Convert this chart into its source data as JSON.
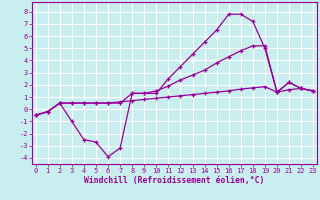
{
  "background_color": "#c8eef0",
  "grid_color": "#ffffff",
  "line_color": "#990099",
  "xlim": [
    -0.3,
    23.3
  ],
  "ylim": [
    -4.5,
    8.8
  ],
  "xlabel": "Windchill (Refroidissement éolien,°C)",
  "xlabel_fontsize": 5.8,
  "ytick_vals": [
    8,
    7,
    6,
    5,
    4,
    3,
    2,
    1,
    0,
    -1,
    -2,
    -3,
    -4
  ],
  "xtick_vals": [
    0,
    1,
    2,
    3,
    4,
    5,
    6,
    7,
    8,
    9,
    10,
    11,
    12,
    13,
    14,
    15,
    16,
    17,
    18,
    19,
    20,
    21,
    22,
    23
  ],
  "series": [
    {
      "x": [
        0,
        1,
        2,
        3,
        4,
        5,
        6,
        7,
        8,
        9,
        10,
        11,
        12,
        13,
        14,
        15,
        16,
        17,
        18,
        19,
        20,
        21,
        22,
        23
      ],
      "y": [
        -0.5,
        -0.2,
        0.5,
        -1.0,
        -2.5,
        -2.7,
        -3.9,
        -3.2,
        1.3,
        1.3,
        1.3,
        2.5,
        3.5,
        4.5,
        5.5,
        6.5,
        7.8,
        7.8,
        7.2,
        5.0,
        1.4,
        2.2,
        1.7,
        1.5
      ]
    },
    {
      "x": [
        0,
        1,
        2,
        3,
        4,
        5,
        6,
        7,
        8,
        9,
        10,
        11,
        12,
        13,
        14,
        15,
        16,
        17,
        18,
        19,
        20,
        21,
        22,
        23
      ],
      "y": [
        -0.5,
        -0.2,
        0.5,
        0.5,
        0.5,
        0.5,
        0.5,
        0.5,
        1.3,
        1.3,
        1.5,
        1.9,
        2.4,
        2.8,
        3.2,
        3.8,
        4.3,
        4.8,
        5.2,
        5.2,
        1.4,
        2.2,
        1.7,
        1.5
      ]
    },
    {
      "x": [
        0,
        1,
        2,
        3,
        4,
        5,
        6,
        7,
        8,
        9,
        10,
        11,
        12,
        13,
        14,
        15,
        16,
        17,
        18,
        19,
        20,
        21,
        22,
        23
      ],
      "y": [
        -0.5,
        -0.2,
        0.5,
        0.5,
        0.5,
        0.5,
        0.5,
        0.6,
        0.7,
        0.8,
        0.9,
        1.0,
        1.1,
        1.2,
        1.3,
        1.4,
        1.5,
        1.65,
        1.75,
        1.85,
        1.4,
        1.6,
        1.7,
        1.5
      ]
    }
  ]
}
